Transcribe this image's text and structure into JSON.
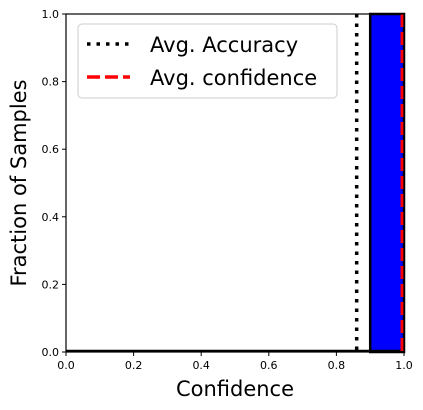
{
  "chart_data": {
    "type": "bar",
    "xlabel": "Confidence",
    "ylabel": "Fraction of Samples",
    "xlim": [
      0.0,
      1.0
    ],
    "ylim": [
      0.0,
      1.0
    ],
    "xticks": [
      "0.0",
      "0.2",
      "0.4",
      "0.6",
      "0.8",
      "1.0"
    ],
    "yticks": [
      "0.0",
      "0.2",
      "0.4",
      "0.6",
      "0.8",
      "1.0"
    ],
    "grid": false,
    "legend_position": "top-right",
    "bins": [
      {
        "x_start": 0.9,
        "x_end": 1.0,
        "value": 1.0
      }
    ],
    "bar_color": "#0000ff",
    "bar_edge_color": "#000000",
    "series": [
      {
        "name": "Avg. Accuracy",
        "x": 0.86,
        "style": "dotted",
        "color": "#000000"
      },
      {
        "name": "Avg. confidence",
        "x": 0.995,
        "style": "dashed",
        "color": "#ff0000"
      }
    ]
  }
}
